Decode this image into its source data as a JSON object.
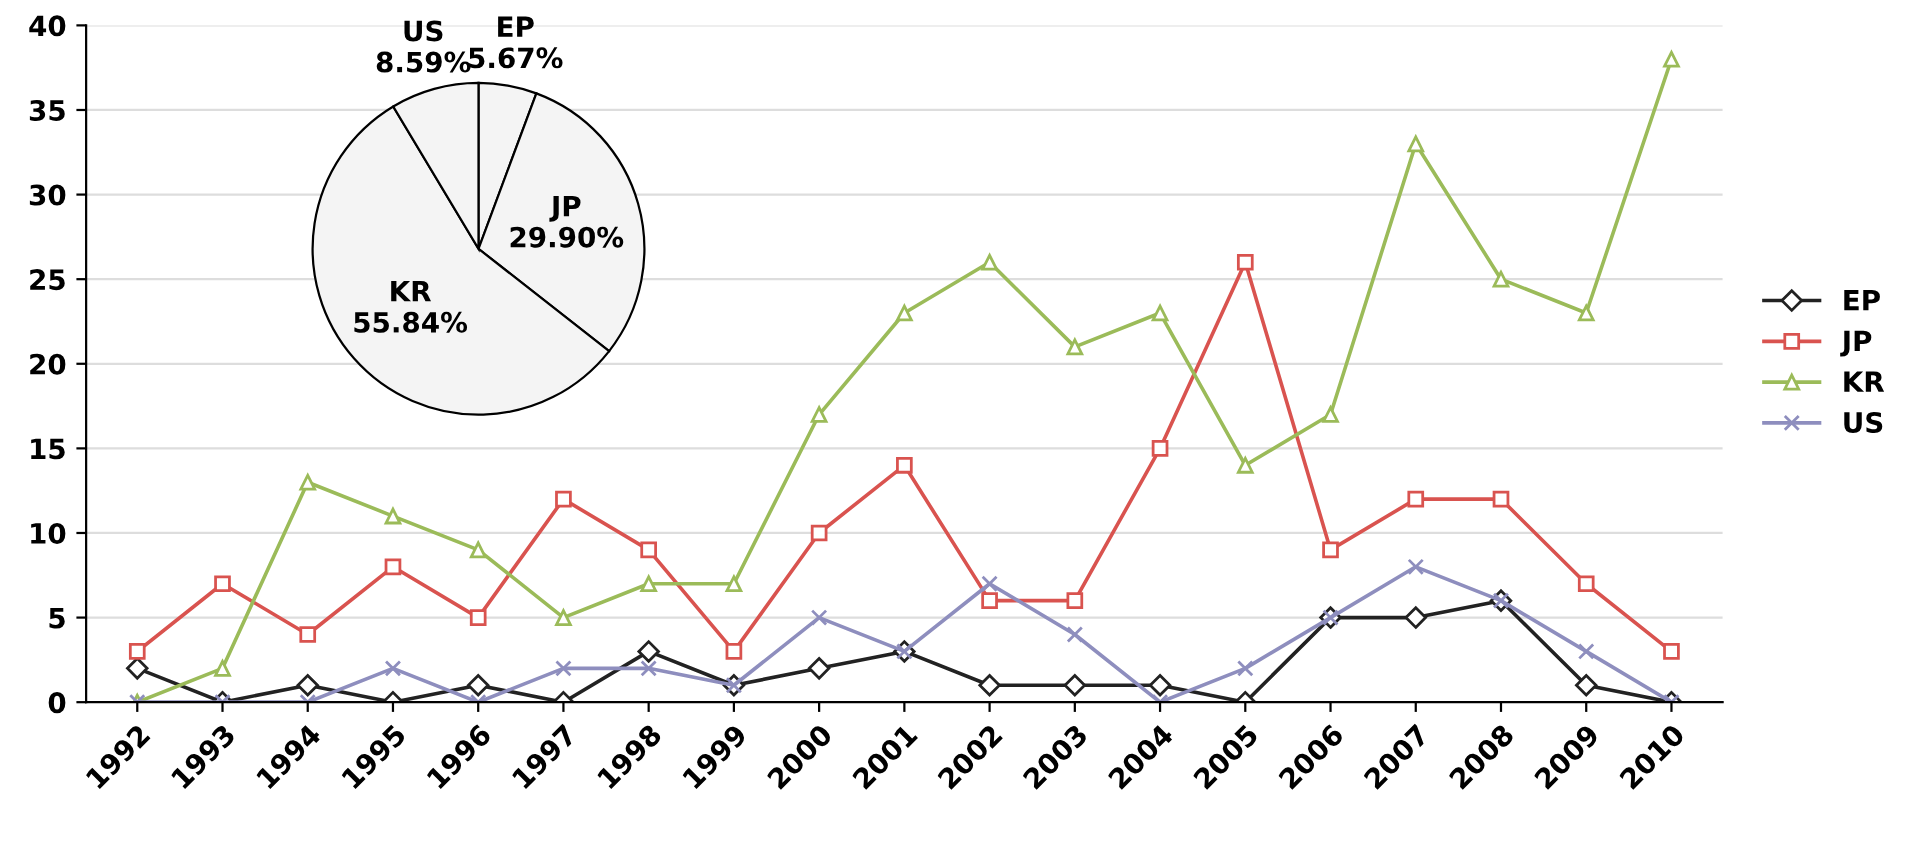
{
  "chart_data": [
    {
      "type": "line",
      "categories": [
        "1992",
        "1993",
        "1994",
        "1995",
        "1996",
        "1997",
        "1998",
        "1999",
        "2000",
        "2001",
        "2002",
        "2003",
        "2004",
        "2005",
        "2006",
        "2007",
        "2008",
        "2009",
        "2010"
      ],
      "series": [
        {
          "name": "EP",
          "color": "#222222",
          "marker": "diamond",
          "values": [
            2,
            0,
            1,
            0,
            1,
            0,
            3,
            1,
            2,
            3,
            1,
            1,
            1,
            0,
            5,
            5,
            6,
            1,
            0
          ]
        },
        {
          "name": "JP",
          "color": "#d9534f",
          "marker": "square",
          "values": [
            3,
            7,
            4,
            8,
            5,
            12,
            9,
            3,
            10,
            14,
            6,
            6,
            15,
            26,
            9,
            12,
            12,
            7,
            3
          ]
        },
        {
          "name": "KR",
          "color": "#9bbb59",
          "marker": "triangle",
          "values": [
            0,
            2,
            13,
            11,
            9,
            5,
            7,
            7,
            17,
            23,
            26,
            21,
            23,
            14,
            17,
            33,
            25,
            23,
            38
          ]
        },
        {
          "name": "US",
          "color": "#8e8ebe",
          "marker": "cross",
          "values": [
            0,
            0,
            0,
            2,
            0,
            2,
            2,
            1,
            5,
            3,
            7,
            4,
            0,
            2,
            5,
            8,
            6,
            3,
            0
          ]
        }
      ],
      "ylim": [
        0,
        40
      ],
      "yticks": [
        0,
        5,
        10,
        15,
        20,
        25,
        30,
        35,
        40
      ],
      "grid": "y",
      "legend": "right",
      "line_style": "solid"
    },
    {
      "type": "pie",
      "categories": [
        "EP",
        "JP",
        "KR",
        "US"
      ],
      "values": [
        5.67,
        29.9,
        55.84,
        8.59
      ],
      "value_labels": [
        "5.67%",
        "29.90%",
        "55.84%",
        "8.59%"
      ],
      "colors": [
        "#f4f4f4",
        "#f4f4f4",
        "#f4f4f4",
        "#f4f4f4"
      ]
    }
  ]
}
